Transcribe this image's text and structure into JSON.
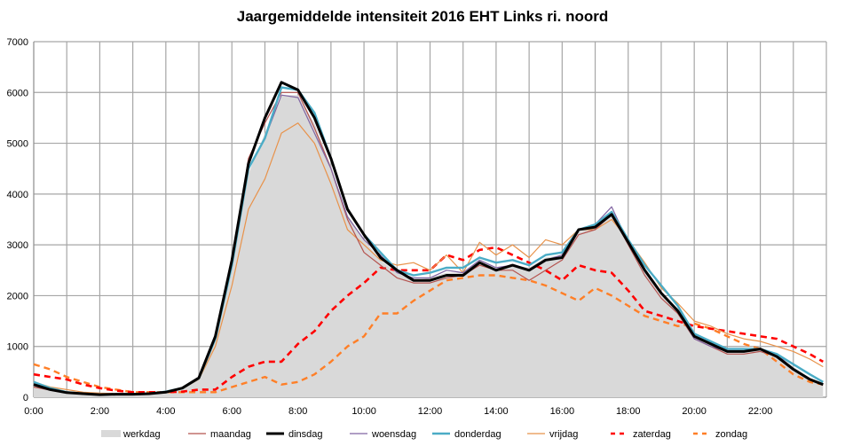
{
  "chart_data": {
    "type": "line",
    "title": "Jaargemiddelde intensiteit 2016 EHT Links ri. noord",
    "xlabel": "",
    "ylabel": "",
    "ylim": [
      0,
      7000
    ],
    "yticks": [
      "0",
      "1000",
      "2000",
      "3000",
      "4000",
      "5000",
      "6000",
      "7000"
    ],
    "xlim_hours": [
      0,
      24
    ],
    "xticks": [
      "0:00",
      "2:00",
      "4:00",
      "6:00",
      "8:00",
      "10:00",
      "12:00",
      "14:00",
      "16:00",
      "18:00",
      "20:00",
      "22:00"
    ],
    "grid": true,
    "legend_position": "bottom",
    "x": [
      0,
      0.5,
      1,
      1.5,
      2,
      2.5,
      3,
      3.5,
      4,
      4.5,
      5,
      5.5,
      6,
      6.5,
      7,
      7.5,
      8,
      8.5,
      9,
      9.5,
      10,
      10.5,
      11,
      11.5,
      12,
      12.5,
      13,
      13.5,
      14,
      14.5,
      15,
      15.5,
      16,
      16.5,
      17,
      17.5,
      18,
      18.5,
      19,
      19.5,
      20,
      20.5,
      21,
      21.5,
      22,
      22.5,
      23,
      23.5,
      23.9
    ],
    "series": [
      {
        "name": "werkdag",
        "style": "area",
        "color": "#d9d9d9",
        "values": [
          240,
          150,
          90,
          70,
          50,
          60,
          60,
          70,
          100,
          180,
          370,
          1150,
          2650,
          4400,
          5200,
          5950,
          5950,
          5400,
          4550,
          3600,
          3100,
          2700,
          2450,
          2300,
          2350,
          2450,
          2450,
          2700,
          2550,
          2600,
          2550,
          2750,
          2800,
          3250,
          3350,
          3600,
          3050,
          2500,
          2050,
          1750,
          1250,
          1050,
          900,
          900,
          950,
          850,
          600,
          380,
          280
        ]
      },
      {
        "name": "maandag",
        "style": "line",
        "color": "#b5534f",
        "values": [
          200,
          140,
          90,
          60,
          50,
          60,
          60,
          70,
          100,
          170,
          370,
          1150,
          2600,
          4700,
          5400,
          6000,
          6000,
          5300,
          4500,
          3500,
          2850,
          2600,
          2350,
          2250,
          2250,
          2350,
          2400,
          2600,
          2500,
          2500,
          2300,
          2500,
          2700,
          3200,
          3300,
          3600,
          3000,
          2400,
          1950,
          1650,
          1150,
          1000,
          850,
          850,
          900,
          800,
          550,
          350,
          250
        ]
      },
      {
        "name": "dinsdag",
        "style": "line",
        "color": "#000000",
        "values": [
          250,
          150,
          90,
          70,
          50,
          60,
          60,
          70,
          100,
          180,
          380,
          1200,
          2700,
          4600,
          5500,
          6200,
          6050,
          5500,
          4700,
          3700,
          3200,
          2750,
          2500,
          2300,
          2300,
          2400,
          2400,
          2650,
          2500,
          2600,
          2500,
          2700,
          2750,
          3300,
          3350,
          3600,
          3050,
          2500,
          2050,
          1700,
          1200,
          1050,
          900,
          900,
          950,
          800,
          550,
          350,
          250
        ]
      },
      {
        "name": "woensdag",
        "style": "line",
        "color": "#8064a2",
        "values": [
          250,
          160,
          90,
          70,
          50,
          60,
          60,
          70,
          110,
          180,
          380,
          1150,
          2600,
          4500,
          5100,
          5950,
          5900,
          5200,
          4500,
          3550,
          3100,
          2800,
          2450,
          2350,
          2350,
          2500,
          2450,
          2700,
          2550,
          2600,
          2500,
          2700,
          2800,
          3300,
          3400,
          3750,
          3050,
          2500,
          2050,
          1700,
          1150,
          1000,
          900,
          900,
          950,
          850,
          550,
          350,
          250
        ]
      },
      {
        "name": "donderdag",
        "style": "line",
        "color": "#4bacc6",
        "values": [
          300,
          180,
          100,
          70,
          50,
          60,
          60,
          70,
          110,
          180,
          370,
          1150,
          2600,
          4500,
          5100,
          6100,
          6050,
          5600,
          4700,
          3700,
          3200,
          2850,
          2500,
          2400,
          2450,
          2550,
          2550,
          2750,
          2650,
          2700,
          2600,
          2800,
          2850,
          3300,
          3400,
          3650,
          3100,
          2600,
          2200,
          1800,
          1250,
          1100,
          950,
          950,
          950,
          850,
          650,
          450,
          300
        ]
      },
      {
        "name": "vrijdag",
        "style": "line",
        "color": "#e8924a",
        "values": [
          300,
          200,
          150,
          100,
          80,
          70,
          60,
          70,
          100,
          170,
          350,
          1000,
          2200,
          3700,
          4300,
          5200,
          5400,
          5000,
          4200,
          3300,
          3000,
          2700,
          2600,
          2650,
          2500,
          2800,
          2450,
          3050,
          2800,
          3000,
          2750,
          3100,
          3000,
          3300,
          3300,
          3500,
          3100,
          2650,
          2150,
          1850,
          1500,
          1400,
          1250,
          1150,
          1100,
          1000,
          900,
          750,
          600
        ]
      },
      {
        "name": "zaterdag",
        "style": "dashed",
        "color": "#ff0000",
        "values": [
          450,
          400,
          350,
          250,
          180,
          130,
          100,
          100,
          100,
          110,
          150,
          150,
          400,
          600,
          700,
          700,
          1050,
          1300,
          1700,
          2000,
          2250,
          2550,
          2500,
          2500,
          2500,
          2800,
          2700,
          2900,
          2950,
          2800,
          2650,
          2500,
          2300,
          2600,
          2500,
          2450,
          2100,
          1700,
          1600,
          1500,
          1400,
          1350,
          1300,
          1250,
          1200,
          1150,
          1000,
          850,
          700
        ]
      },
      {
        "name": "zondag",
        "style": "dashed",
        "color": "#ff7f27",
        "values": [
          650,
          550,
          400,
          300,
          200,
          150,
          100,
          100,
          100,
          100,
          100,
          100,
          200,
          300,
          400,
          250,
          300,
          450,
          700,
          1000,
          1200,
          1650,
          1650,
          1900,
          2100,
          2300,
          2350,
          2400,
          2400,
          2350,
          2300,
          2200,
          2050,
          1900,
          2150,
          2000,
          1800,
          1600,
          1500,
          1400,
          1450,
          1350,
          1200,
          1050,
          950,
          700,
          450,
          300,
          250
        ]
      }
    ]
  }
}
